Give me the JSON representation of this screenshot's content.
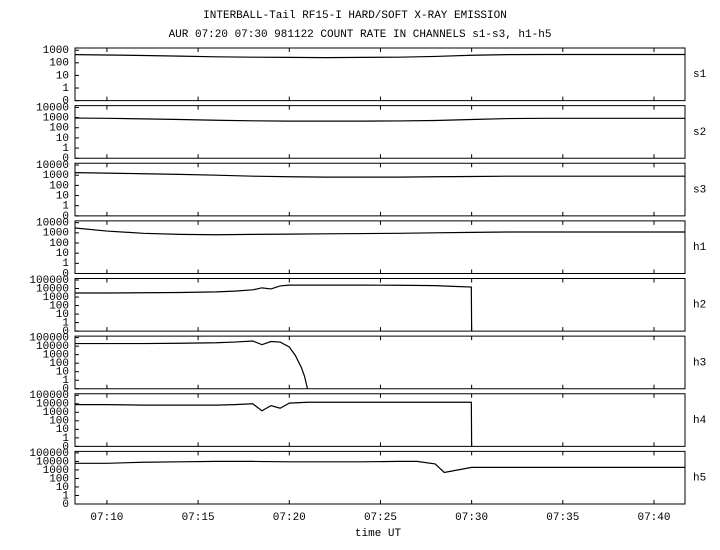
{
  "chart_data": [
    {
      "type": "line",
      "title": "INTERBALL-Tail RF15-I HARD/SOFT X-RAY EMISSION",
      "subtitle": "AUR 07:20 07:30 981122  COUNT RATE IN CHANNELS s1-s3, h1-h5",
      "label": "s1",
      "color": "#000000",
      "yscale": "log",
      "xlim": [
        "07:08:15",
        "07:41:42"
      ],
      "ylim": [
        0,
        1500
      ],
      "yticks": [
        0,
        1,
        10,
        100,
        1000
      ],
      "x": [
        "07:08:15",
        "07:10",
        "07:12",
        "07:14",
        "07:16",
        "07:18",
        "07:20",
        "07:22",
        "07:24",
        "07:26",
        "07:28",
        "07:30",
        "07:32",
        "07:34",
        "07:36",
        "07:38",
        "07:40",
        "07:41:42"
      ],
      "values": [
        450,
        420,
        380,
        340,
        300,
        280,
        270,
        260,
        270,
        280,
        320,
        400,
        450,
        460,
        460,
        460,
        460,
        460
      ]
    },
    {
      "type": "line",
      "label": "s2",
      "color": "#000000",
      "yscale": "log",
      "xlim": [
        "07:08:15",
        "07:41:42"
      ],
      "ylim": [
        0,
        15000
      ],
      "yticks": [
        0,
        1,
        10,
        100,
        1000,
        10000
      ],
      "x": [
        "07:08:15",
        "07:10",
        "07:12",
        "07:14",
        "07:16",
        "07:18",
        "07:20",
        "07:22",
        "07:24",
        "07:26",
        "07:28",
        "07:30",
        "07:32",
        "07:34",
        "07:36",
        "07:38",
        "07:40",
        "07:41:42"
      ],
      "values": [
        900,
        850,
        750,
        650,
        550,
        480,
        450,
        450,
        450,
        470,
        520,
        650,
        800,
        850,
        850,
        850,
        850,
        850
      ]
    },
    {
      "type": "line",
      "label": "s3",
      "color": "#000000",
      "yscale": "log",
      "xlim": [
        "07:08:15",
        "07:41:42"
      ],
      "ylim": [
        0,
        15000
      ],
      "yticks": [
        0,
        1,
        10,
        100,
        1000,
        10000
      ],
      "x": [
        "07:08:15",
        "07:10",
        "07:12",
        "07:14",
        "07:16",
        "07:18",
        "07:20",
        "07:22",
        "07:24",
        "07:26",
        "07:28",
        "07:30",
        "07:32",
        "07:34",
        "07:36",
        "07:38",
        "07:40",
        "07:41:42"
      ],
      "values": [
        1800,
        1600,
        1400,
        1200,
        1000,
        800,
        700,
        650,
        650,
        650,
        700,
        750,
        800,
        800,
        800,
        800,
        800,
        800
      ]
    },
    {
      "type": "line",
      "label": "h1",
      "color": "#000000",
      "yscale": "log",
      "xlim": [
        "07:08:15",
        "07:41:42"
      ],
      "ylim": [
        0,
        15000
      ],
      "yticks": [
        0,
        1,
        10,
        100,
        1000,
        10000
      ],
      "x": [
        "07:08:15",
        "07:10",
        "07:12",
        "07:14",
        "07:16",
        "07:18",
        "07:20",
        "07:22",
        "07:24",
        "07:26",
        "07:28",
        "07:30",
        "07:32",
        "07:34",
        "07:36",
        "07:38",
        "07:40",
        "07:41:42"
      ],
      "values": [
        3000,
        1500,
        900,
        700,
        650,
        700,
        750,
        800,
        850,
        900,
        1000,
        1100,
        1200,
        1200,
        1200,
        1200,
        1200,
        1200
      ]
    },
    {
      "type": "line",
      "label": "h2",
      "color": "#000000",
      "yscale": "log",
      "xlim": [
        "07:08:15",
        "07:41:42"
      ],
      "ylim": [
        0,
        150000
      ],
      "yticks": [
        0,
        1,
        10,
        100,
        1000,
        10000,
        100000
      ],
      "x": [
        "07:08:15",
        "07:10",
        "07:12",
        "07:14",
        "07:16",
        "07:17",
        "07:18",
        "07:18:30",
        "07:19",
        "07:19:30",
        "07:20",
        "07:22",
        "07:24",
        "07:26",
        "07:28",
        "07:29",
        "07:29:59",
        "07:30"
      ],
      "values": [
        3000,
        3000,
        3200,
        3400,
        4000,
        5000,
        7000,
        12000,
        9000,
        20000,
        25000,
        25000,
        25000,
        24000,
        22000,
        18000,
        15000,
        0
      ]
    },
    {
      "type": "line",
      "label": "h3",
      "color": "#000000",
      "yscale": "log",
      "xlim": [
        "07:08:15",
        "07:41:42"
      ],
      "ylim": [
        0,
        150000
      ],
      "yticks": [
        0,
        1,
        10,
        100,
        1000,
        10000,
        100000
      ],
      "x": [
        "07:08:15",
        "07:10",
        "07:12",
        "07:14",
        "07:16",
        "07:17",
        "07:18",
        "07:18:30",
        "07:19",
        "07:19:30",
        "07:20",
        "07:20:20",
        "07:20:40",
        "07:20:50",
        "07:21"
      ],
      "values": [
        20000,
        20000,
        20000,
        22000,
        25000,
        30000,
        40000,
        15000,
        35000,
        30000,
        8000,
        800,
        30,
        3,
        0
      ]
    },
    {
      "type": "line",
      "label": "h4",
      "color": "#000000",
      "yscale": "log",
      "xlim": [
        "07:08:15",
        "07:41:42"
      ],
      "ylim": [
        0,
        150000
      ],
      "yticks": [
        0,
        1,
        10,
        100,
        1000,
        10000,
        100000
      ],
      "x": [
        "07:08:15",
        "07:10",
        "07:12",
        "07:14",
        "07:16",
        "07:17",
        "07:18",
        "07:18:30",
        "07:19",
        "07:19:30",
        "07:20",
        "07:21",
        "07:24",
        "07:27",
        "07:29:59",
        "07:30"
      ],
      "values": [
        8000,
        8000,
        7000,
        7000,
        7000,
        8000,
        10000,
        1500,
        6000,
        3000,
        12000,
        15000,
        15000,
        15000,
        15000,
        0
      ]
    },
    {
      "type": "line",
      "label": "h5",
      "color": "#000000",
      "yscale": "log",
      "xlabel": "time UT",
      "xlim": [
        "07:08:15",
        "07:41:42"
      ],
      "ylim": [
        0,
        150000
      ],
      "yticks": [
        0,
        1,
        10,
        100,
        1000,
        10000,
        100000
      ],
      "xticks": [
        "07:10",
        "07:15",
        "07:20",
        "07:25",
        "07:30",
        "07:35",
        "07:40"
      ],
      "x": [
        "07:08:15",
        "07:10",
        "07:12",
        "07:14",
        "07:16",
        "07:18",
        "07:20",
        "07:22",
        "07:24",
        "07:26",
        "07:27",
        "07:28",
        "07:28:30",
        "07:29",
        "07:30",
        "07:32",
        "07:36",
        "07:41:42"
      ],
      "values": [
        6000,
        6000,
        8000,
        9000,
        10000,
        10000,
        9000,
        9000,
        9000,
        10000,
        10000,
        5000,
        500,
        800,
        2000,
        2000,
        2000,
        2000
      ]
    }
  ]
}
